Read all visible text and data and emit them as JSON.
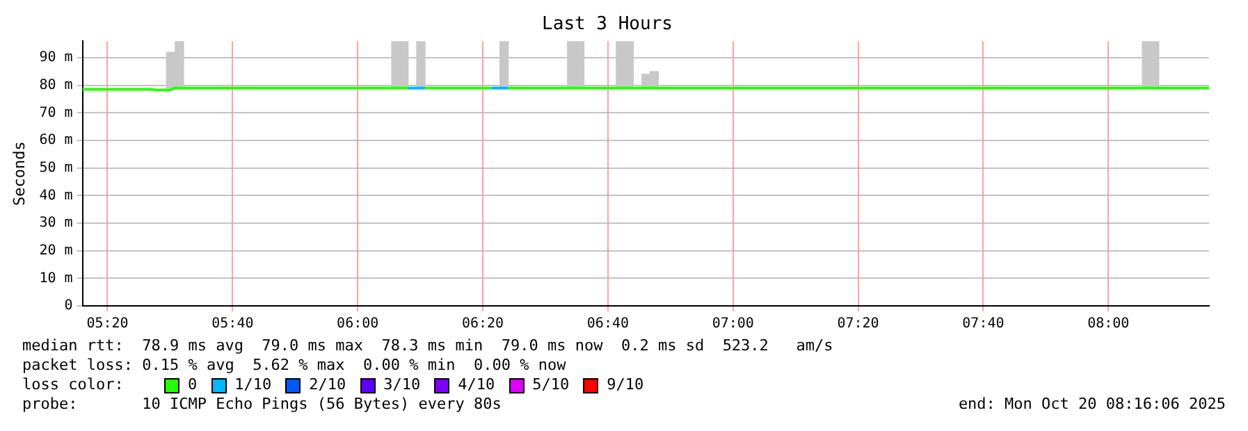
{
  "chart_data": {
    "type": "line",
    "title": "Last 3 Hours",
    "ylabel": "Seconds",
    "legend_title": "loss color:",
    "xlim": [
      5.2667,
      8.2683
    ],
    "xticks": [
      {
        "value": 5.3333,
        "label": "05:20"
      },
      {
        "value": 5.6667,
        "label": "05:40"
      },
      {
        "value": 6,
        "label": "06:00"
      },
      {
        "value": 6.3333,
        "label": "06:20"
      },
      {
        "value": 6.6667,
        "label": "06:40"
      },
      {
        "value": 7,
        "label": "07:00"
      },
      {
        "value": 7.3333,
        "label": "07:20"
      },
      {
        "value": 7.6667,
        "label": "07:40"
      },
      {
        "value": 8,
        "label": "08:00"
      }
    ],
    "ylim": [
      0,
      96
    ],
    "yticks": [
      0,
      {
        "value": 10,
        "label": "10 m"
      },
      {
        "value": 20,
        "label": "20 m"
      },
      {
        "value": 30,
        "label": "30 m"
      },
      {
        "value": 40,
        "label": "40 m"
      },
      {
        "value": 50,
        "label": "50 m"
      },
      {
        "value": 60,
        "label": "60 m"
      },
      {
        "value": 70,
        "label": "70 m"
      },
      {
        "value": 80,
        "label": "80 m"
      },
      {
        "value": 90,
        "label": "90 m"
      }
    ],
    "grid": true,
    "legend": "bottom",
    "line_style": "solid",
    "marker": "none",
    "series": [
      {
        "type": "bar",
        "color": "#c8c8c8",
        "x": [
          5.5017,
          5.525,
          6.1017,
          6.1233,
          6.1683,
          6.39,
          6.57,
          6.5917,
          6.7,
          6.7233,
          6.7683,
          6.79,
          8.1017,
          8.1233
        ],
        "base": [
          79,
          79,
          79,
          79,
          79,
          79,
          79,
          79,
          79,
          79,
          79,
          79,
          79,
          79
        ],
        "values": [
          13,
          17,
          17,
          17,
          17,
          17,
          17,
          17,
          17,
          17,
          5,
          6,
          17,
          17
        ]
      },
      {
        "name": "0",
        "color": "#26ff00",
        "x": [
          5.2667,
          5.45,
          5.4633,
          5.5,
          5.5133,
          6.135,
          6.1367,
          6.18,
          6.355,
          6.3567,
          6.4,
          8.2683
        ],
        "values": [
          78.5,
          78.5,
          78.3,
          78.3,
          79,
          79,
          null,
          79,
          79,
          null,
          79,
          79
        ]
      },
      {
        "name": "1/10",
        "color": "#00b8ff",
        "x": [
          6.135,
          6.18,
          6.1817,
          6.355,
          6.4
        ],
        "values": [
          79,
          79,
          null,
          79,
          79
        ]
      },
      {
        "name": "2/10",
        "color": "#0059ff"
      },
      {
        "name": "3/10",
        "color": "#5e00ff"
      },
      {
        "name": "4/10",
        "color": "#7e00ff"
      },
      {
        "name": "5/10",
        "color": "#dd00ff"
      },
      {
        "name": "9/10",
        "color": "#ff0000"
      }
    ],
    "annotations": [
      "median rtt:  78.9 ms avg  79.0 ms max  78.3 ms min  79.0 ms now  0.2 ms sd  523.2   am/s",
      "packet loss: 0.15 % avg  5.62 % max  0.00 % min  0.00 % now",
      "probe:       10 ICMP Echo Pings (56 Bytes) every 80s",
      "end: Mon Oct 20 08:16:06 2025"
    ]
  }
}
